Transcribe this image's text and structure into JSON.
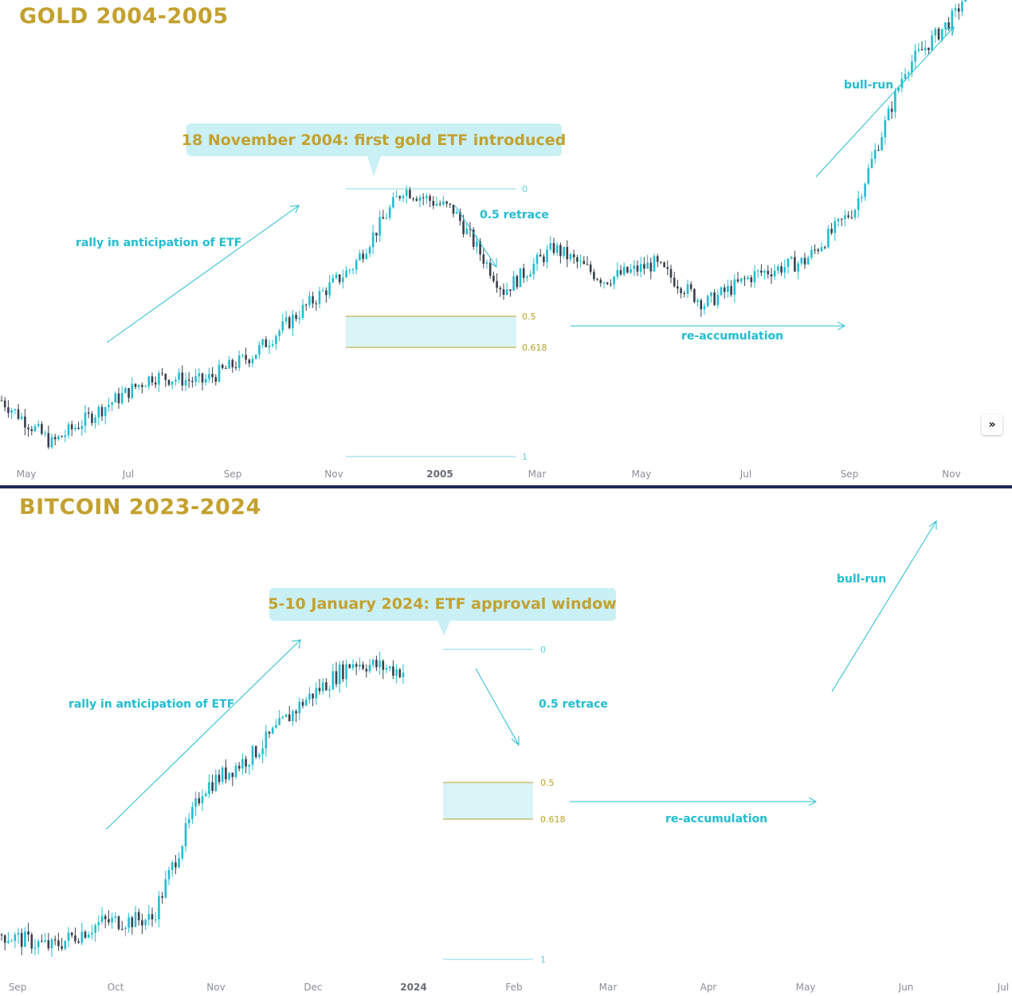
{
  "colors": {
    "accent_teal": "#22bdd0",
    "title_gold": "#c3a12f",
    "fib_gold": "#b8a22a",
    "fib_zone": "#d9f5f8",
    "callout_bg": "#c9f0f5",
    "candle_up": "#22bdd0",
    "candle_down": "#3a3f4c",
    "divider": "#1e2a5a",
    "axis_text": "#8c8f99"
  },
  "gold": {
    "title": "GOLD 2004-2005",
    "callout": "18 November 2004: first gold ETF introduced",
    "annotations": {
      "rally": "rally in anticipation of ETF",
      "retrace": "0.5 retrace",
      "reaccumulation": "re-accumulation",
      "bullrun": "bull-run"
    },
    "fib_levels": [
      "0",
      "0.5",
      "0.618",
      "1"
    ],
    "x_ticks": [
      "May",
      "Jul",
      "Sep",
      "Nov",
      "2005",
      "Mar",
      "May",
      "Jul",
      "Sep",
      "Nov"
    ],
    "expand_icon": "»"
  },
  "bitcoin": {
    "title": "BITCOIN 2023-2024",
    "callout": "5-10 January 2024: ETF approval window",
    "annotations": {
      "rally": "rally in anticipation of ETF",
      "retrace": "0.5 retrace",
      "reaccumulation": "re-accumulation",
      "bullrun": "bull-run"
    },
    "fib_levels": [
      "0",
      "0.5",
      "0.618",
      "1"
    ],
    "x_ticks": [
      "Sep",
      "Oct",
      "Nov",
      "Dec",
      "2024",
      "Feb",
      "Mar",
      "Apr",
      "May",
      "Jun",
      "Jul"
    ]
  },
  "chart_data": [
    {
      "type": "line",
      "title": "GOLD 2004-2005",
      "x_ticks": [
        "May",
        "Jul",
        "Sep",
        "Nov",
        "2005",
        "Mar",
        "May",
        "Jul",
        "Sep",
        "Nov"
      ],
      "series": [
        {
          "x": [
            "2004-04",
            "2004-05",
            "2004-06",
            "2004-07",
            "2004-08",
            "2004-09",
            "2004-10",
            "2004-11",
            "2004-12",
            "2005-01",
            "2005-02",
            "2005-03",
            "2005-04",
            "2005-05",
            "2005-06",
            "2005-07",
            "2005-08",
            "2005-09",
            "2005-10",
            "2005-11",
            "2005-12"
          ],
          "values": [
            0.21,
            0.05,
            0.18,
            0.3,
            0.28,
            0.38,
            0.55,
            0.71,
            1.0,
            0.92,
            0.62,
            0.78,
            0.66,
            0.72,
            0.57,
            0.68,
            0.73,
            0.93,
            1.45,
            1.65,
            2.05
          ]
        }
      ],
      "fib_retracement": {
        "levels": [
          0,
          0.5,
          0.618,
          1
        ],
        "zone": [
          0.5,
          0.618
        ]
      }
    },
    {
      "type": "line",
      "title": "BITCOIN 2023-2024",
      "x_ticks": [
        "Sep",
        "Oct",
        "Nov",
        "Dec",
        "2024",
        "Feb",
        "Mar",
        "Apr",
        "May",
        "Jun",
        "Jul"
      ],
      "series": [
        {
          "x": [
            "2023-09-01",
            "2023-09-15",
            "2023-10-01",
            "2023-10-15",
            "2023-11-01",
            "2023-11-15",
            "2023-12-01",
            "2023-12-15",
            "2023-12-31"
          ],
          "values": [
            0.08,
            0.04,
            0.12,
            0.13,
            0.55,
            0.66,
            0.83,
            0.96,
            0.93
          ]
        }
      ],
      "fib_retracement": {
        "levels": [
          0,
          0.5,
          0.618,
          1
        ],
        "zone": [
          0.5,
          0.618
        ]
      }
    }
  ]
}
